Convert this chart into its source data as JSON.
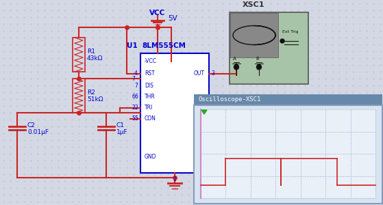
{
  "bg_color": "#d4d8e4",
  "dot_color": "#b8bece",
  "wire_color": "#cc2222",
  "ic_color": "#0000cc",
  "ic_fill": "#ffffff",
  "ic_border": "#0000cc",
  "scope_bg": "#b8ccb8",
  "scope_wave_bg": "#888888",
  "scope_border": "#8899bb",
  "scope_title_bg": "#6688aa",
  "scope_grid_dash": "#aabbcc",
  "scope_signal": "#cc2222",
  "scope_left_line": "#cc88cc",
  "title_vcc": "VCC",
  "title_5v": "5V",
  "title_xsc1": "XSC1",
  "title_u1": "U1",
  "title_lm555": "8LM555CM",
  "title_osc": "Oscilloscope-XSC1",
  "r1_label": "R1",
  "r1_val": "43kΩ",
  "r2_label": "R2",
  "r2_val": "51kΩ",
  "c1_label": "C1",
  "c1_val": "1μF",
  "c2_label": "C2",
  "c2_val": "0.01μF"
}
